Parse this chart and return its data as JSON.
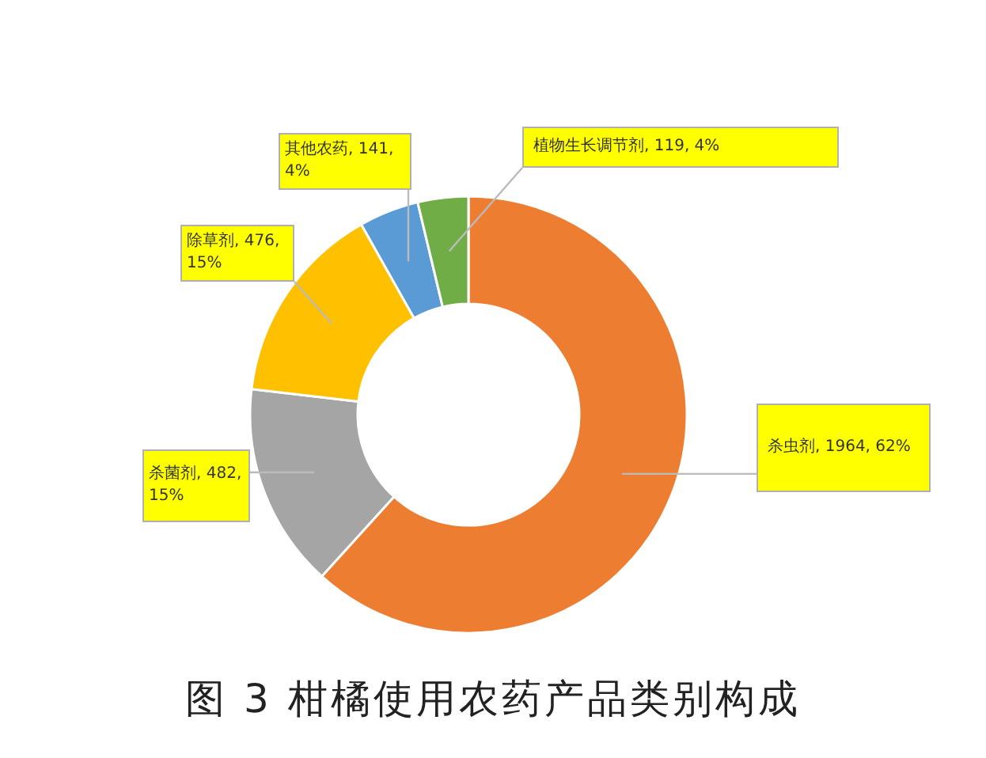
{
  "chart_data": {
    "type": "donut",
    "title": "图 3 柑橘使用农药产品类别构成",
    "categories": [
      "杀虫剂",
      "杀菌剂",
      "除草剂",
      "其他农药",
      "植物生长调节剂"
    ],
    "values": [
      1964,
      482,
      476,
      141,
      119
    ],
    "colors": [
      "#ed7d31",
      "#a5a5a5",
      "#ffc000",
      "#5b9bd5",
      "#70ad47"
    ],
    "value_labels": [
      "1964, 62%",
      "482, 15%",
      "476, 15%",
      "141, 4%",
      "119, 4%"
    ],
    "legend": false
  }
}
